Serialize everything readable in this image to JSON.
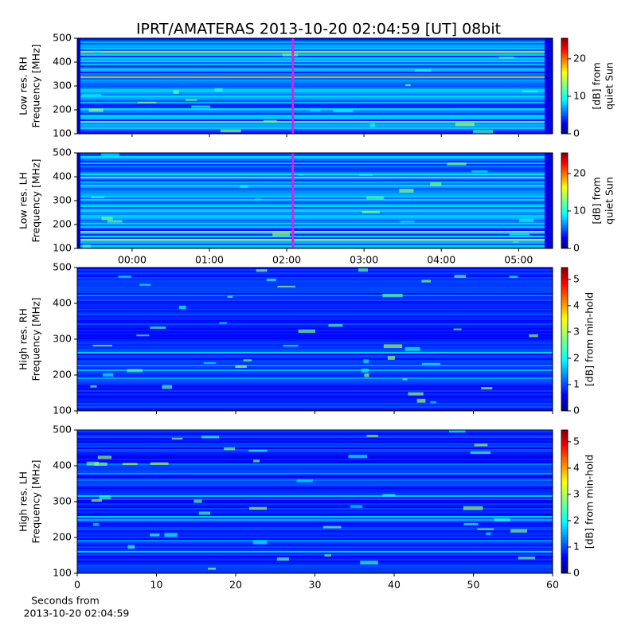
{
  "title": "IPRT/AMATERAS 2013-10-20 02:04:59 [UT]   08bit",
  "chart_data": [
    {
      "type": "heatmap",
      "ylabel": [
        "Low res. RH",
        "Frequency [MHz]"
      ],
      "xlim": [
        -0.71,
        5.44
      ],
      "xticks": [
        {
          "value": 0,
          "label": "00:00"
        },
        {
          "value": 1,
          "label": "01:00"
        },
        {
          "value": 2,
          "label": "02:00"
        },
        {
          "value": 3,
          "label": "03:00"
        },
        {
          "value": 4,
          "label": "04:00"
        },
        {
          "value": 5,
          "label": "05:00"
        }
      ],
      "ylim": [
        100,
        500
      ],
      "yticks": [
        100,
        200,
        300,
        400,
        500
      ],
      "marker_x": 2.08,
      "marker_color": "#e020e0",
      "colorbar": {
        "label": [
          "[dB] from",
          "quiet Sun"
        ],
        "lim": [
          0,
          25.5
        ],
        "ticks": [
          0,
          10,
          20
        ]
      }
    },
    {
      "type": "heatmap",
      "ylabel": [
        "Low res. LH",
        "Frequency [MHz]"
      ],
      "xlim": [
        -0.71,
        5.44
      ],
      "xticks": [
        {
          "value": 0,
          "label": "00:00"
        },
        {
          "value": 1,
          "label": "01:00"
        },
        {
          "value": 2,
          "label": "02:00"
        },
        {
          "value": 3,
          "label": "03:00"
        },
        {
          "value": 4,
          "label": "04:00"
        },
        {
          "value": 5,
          "label": "05:00"
        }
      ],
      "ylim": [
        100,
        500
      ],
      "yticks": [
        100,
        200,
        300,
        400,
        500
      ],
      "marker_x": 2.08,
      "marker_color": "#e020e0",
      "colorbar": {
        "label": [
          "[dB] from",
          "quiet Sun"
        ],
        "lim": [
          0,
          25.5
        ],
        "ticks": [
          0,
          10,
          20
        ]
      }
    },
    {
      "type": "heatmap",
      "ylabel": [
        "High res. RH",
        "Frequency [MHz]"
      ],
      "xlim": [
        0,
        60
      ],
      "xticks": [
        0,
        10,
        20,
        30,
        40,
        50,
        60
      ],
      "ylim": [
        100,
        500
      ],
      "yticks": [
        100,
        200,
        300,
        400,
        500
      ],
      "colorbar": {
        "label": [
          "[dB] from min-hold"
        ],
        "lim": [
          0,
          5.45
        ],
        "ticks": [
          0,
          1,
          2,
          3,
          4,
          5
        ]
      }
    },
    {
      "type": "heatmap",
      "ylabel": [
        "High res. LH",
        "Frequency [MHz]"
      ],
      "xlim": [
        0,
        60
      ],
      "xticks": [
        0,
        10,
        20,
        30,
        40,
        50,
        60
      ],
      "ylim": [
        100,
        500
      ],
      "yticks": [
        100,
        200,
        300,
        400,
        500
      ],
      "xlabel": [
        "Seconds from",
        "2013-10-20 02:04:59"
      ],
      "colorbar": {
        "label": [
          "[dB] from min-hold"
        ],
        "lim": [
          0,
          5.45
        ],
        "ticks": [
          0,
          1,
          2,
          3,
          4,
          5
        ]
      }
    }
  ]
}
